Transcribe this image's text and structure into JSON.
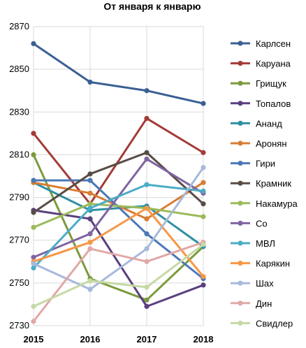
{
  "chart_data": {
    "type": "line",
    "title": "От января к январю",
    "xlabel": "",
    "ylabel": "",
    "x": [
      "2015",
      "2016",
      "2017",
      "2018"
    ],
    "ylim": [
      2730,
      2870
    ],
    "yticks": [
      2730,
      2750,
      2770,
      2790,
      2810,
      2830,
      2850,
      2870
    ],
    "grid": true,
    "legend": "right",
    "series": [
      {
        "name": "Карлсен",
        "color": "#3a5f93",
        "values": [
          2862,
          2844,
          2840,
          2834
        ]
      },
      {
        "name": "Каруана",
        "color": "#a33b38",
        "values": [
          2820,
          2787,
          2827,
          2811
        ]
      },
      {
        "name": "Грищук",
        "color": "#7c9a3c",
        "values": [
          2810,
          2752,
          2742,
          2767
        ]
      },
      {
        "name": "Топалов",
        "color": "#5b3f7f",
        "values": [
          2784,
          2780,
          2739,
          2749
        ]
      },
      {
        "name": "Ананд",
        "color": "#2f8fa3",
        "values": [
          2797,
          2784,
          2786,
          2767
        ]
      },
      {
        "name": "Аронян",
        "color": "#d87c34",
        "values": [
          2797,
          2792,
          2780,
          2797
        ]
      },
      {
        "name": "Гири",
        "color": "#4b78b8",
        "values": [
          2798,
          2798,
          2773,
          2752
        ]
      },
      {
        "name": "Крамник",
        "color": "#594c46",
        "values": [
          2783,
          2801,
          2811,
          2787
        ]
      },
      {
        "name": "Накамура",
        "color": "#9bbb59",
        "values": [
          2776,
          2787,
          2785,
          2781
        ]
      },
      {
        "name": "Со",
        "color": "#8064a2",
        "values": [
          2762,
          2773,
          2808,
          2792
        ]
      },
      {
        "name": "МВЛ",
        "color": "#4bacc6",
        "values": [
          2757,
          2785,
          2796,
          2793
        ]
      },
      {
        "name": "Карякин",
        "color": "#f79646",
        "values": [
          2760,
          2769,
          2785,
          2753
        ]
      },
      {
        "name": "Шах",
        "color": "#a7b9db",
        "values": [
          2759,
          2747,
          2766,
          2804
        ]
      },
      {
        "name": "Дин",
        "color": "#e1a8a6",
        "values": [
          2732,
          2766,
          2760,
          2769
        ]
      },
      {
        "name": "Свидлер",
        "color": "#c6d9a5",
        "values": [
          2739,
          2751,
          2748,
          2768
        ]
      }
    ]
  }
}
